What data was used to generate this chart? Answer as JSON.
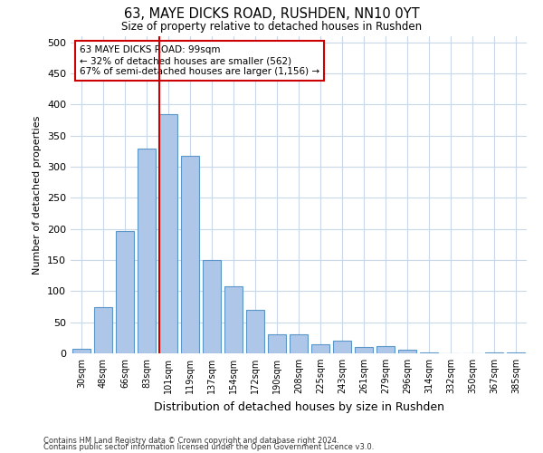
{
  "title_line1": "63, MAYE DICKS ROAD, RUSHDEN, NN10 0YT",
  "title_line2": "Size of property relative to detached houses in Rushden",
  "xlabel": "Distribution of detached houses by size in Rushden",
  "ylabel": "Number of detached properties",
  "bar_labels": [
    "30sqm",
    "48sqm",
    "66sqm",
    "83sqm",
    "101sqm",
    "119sqm",
    "137sqm",
    "154sqm",
    "172sqm",
    "190sqm",
    "208sqm",
    "225sqm",
    "243sqm",
    "261sqm",
    "279sqm",
    "296sqm",
    "314sqm",
    "332sqm",
    "350sqm",
    "367sqm",
    "385sqm"
  ],
  "bar_values": [
    8,
    75,
    197,
    330,
    385,
    318,
    150,
    108,
    70,
    30,
    30,
    15,
    20,
    10,
    11,
    6,
    2,
    0,
    0,
    1,
    2
  ],
  "bar_color": "#aec6e8",
  "bar_edge_color": "#5a96c8",
  "property_label": "63 MAYE DICKS ROAD: 99sqm",
  "annotation_line2": "← 32% of detached houses are smaller (562)",
  "annotation_line3": "67% of semi-detached houses are larger (1,156) →",
  "vline_color": "#cc0000",
  "annotation_box_edge": "#cc0000",
  "ylim": [
    0,
    510
  ],
  "yticks": [
    0,
    50,
    100,
    150,
    200,
    250,
    300,
    350,
    400,
    450,
    500
  ],
  "background_color": "#ffffff",
  "grid_color": "#c8d8e8",
  "footnote_line1": "Contains HM Land Registry data © Crown copyright and database right 2024.",
  "footnote_line2": "Contains public sector information licensed under the Open Government Licence v3.0."
}
